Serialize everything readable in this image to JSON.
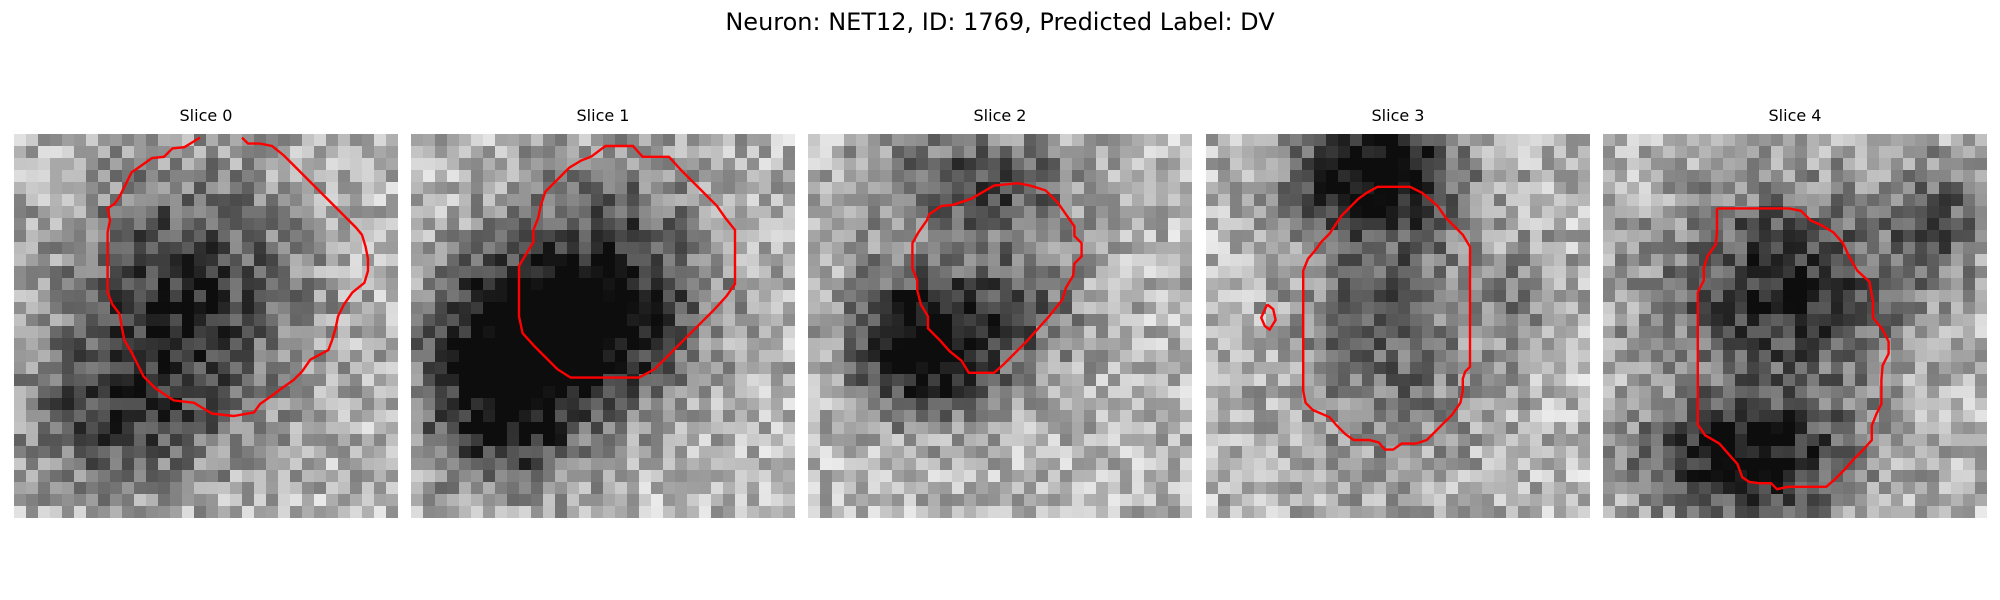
{
  "figure": {
    "title": "Neuron: NET12, ID: 1769, Predicted Label: DV",
    "contour_color": "#ff0000",
    "colormap": "gray",
    "grid_size": 32
  },
  "panels": [
    {
      "title": "Slice 0"
    },
    {
      "title": "Slice 1"
    },
    {
      "title": "Slice 2"
    },
    {
      "title": "Slice 3"
    },
    {
      "title": "Slice 4"
    }
  ]
}
